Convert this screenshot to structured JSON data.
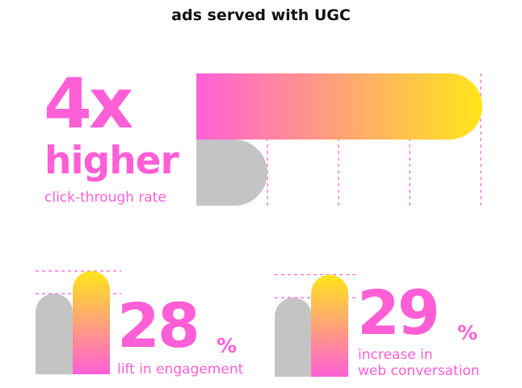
{
  "colors": {
    "accent": "#ff5fd6",
    "gradient_start": "#ff5fd6",
    "gradient_end": "#ffe61a",
    "baseline_bar": "#c4c4c4",
    "text_dark": "#111111"
  },
  "header": {
    "title": "ads served with UGC"
  },
  "chart_data": [
    {
      "type": "bar",
      "orientation": "horizontal",
      "title": "",
      "series": [
        {
          "role": "ugc",
          "value": 4
        },
        {
          "role": "baseline",
          "value": 1
        }
      ],
      "gridlines": "dashed",
      "stat": {
        "number": "4x",
        "word": "higher",
        "caption": "click-through rate"
      }
    },
    {
      "type": "bar",
      "series": [
        {
          "role": "baseline",
          "value": 1.0
        },
        {
          "role": "ugc",
          "value": 1.28
        }
      ],
      "stat": {
        "number": "28",
        "suffix": "%",
        "caption": "lift in engagement"
      }
    },
    {
      "type": "bar",
      "series": [
        {
          "role": "baseline",
          "value": 1.0
        },
        {
          "role": "ugc",
          "value": 1.29
        }
      ],
      "stat": {
        "number": "29",
        "suffix": "%",
        "caption_line1": "increase in",
        "caption_line2": "web conversation"
      }
    }
  ]
}
